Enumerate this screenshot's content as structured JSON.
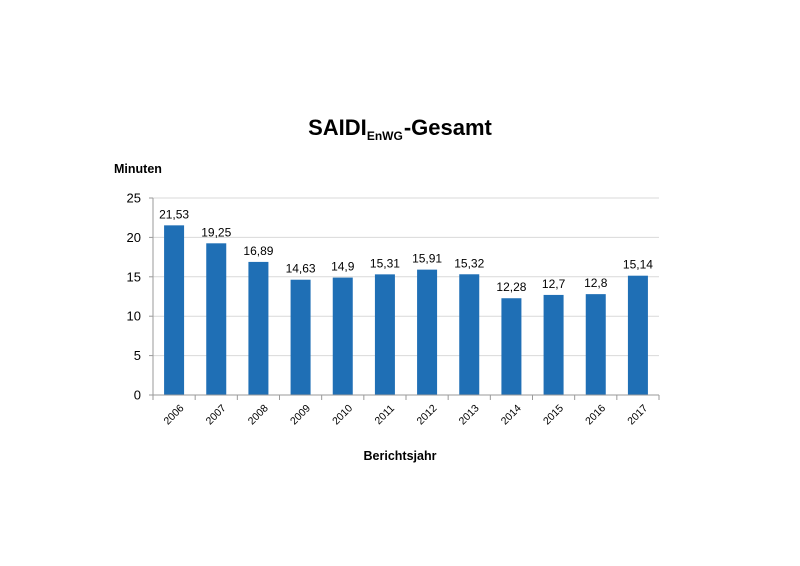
{
  "chart_data": {
    "type": "bar",
    "title": {
      "main": "SAIDI",
      "subscript": "EnWG",
      "suffix": "-Gesamt"
    },
    "ylabel": "Minuten",
    "xlabel": "Berichtsjahr",
    "ylim": [
      0,
      25
    ],
    "yticks": [
      0,
      5,
      10,
      15,
      20,
      25
    ],
    "grid": true,
    "bar_color": "#1f6fb5",
    "categories": [
      "2006",
      "2007",
      "2008",
      "2009",
      "2010",
      "2011",
      "2012",
      "2013",
      "2014",
      "2015",
      "2016",
      "2017"
    ],
    "values": [
      21.53,
      19.25,
      16.89,
      14.63,
      14.9,
      15.31,
      15.91,
      15.32,
      12.28,
      12.7,
      12.8,
      15.14
    ],
    "value_labels": [
      "21,53",
      "19,25",
      "16,89",
      "14,63",
      "14,9",
      "15,31",
      "15,91",
      "15,32",
      "12,28",
      "12,7",
      "12,8",
      "15,14"
    ]
  }
}
